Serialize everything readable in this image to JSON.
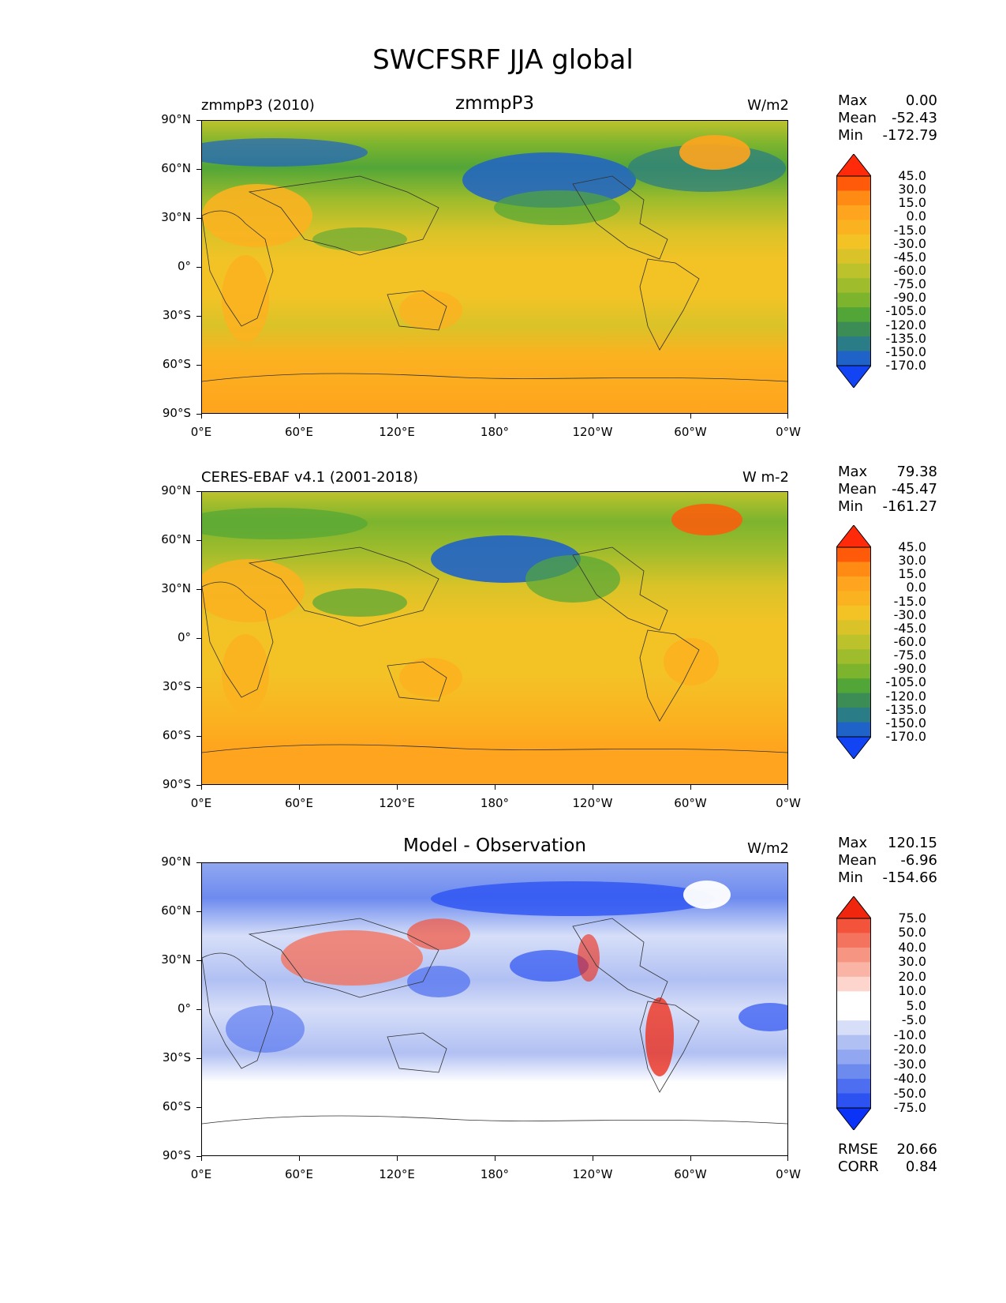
{
  "title": "SWCFSRF JJA global",
  "panels": [
    {
      "left_title": "zmmpP3 (2010)",
      "center_title": "zmmpP3",
      "units": "W/m2",
      "stats": {
        "max_label": "Max",
        "max": "0.00",
        "mean_label": "Mean",
        "mean": "-52.43",
        "min_label": "Min",
        "min": "-172.79"
      },
      "colorbar_levels": [
        "45.0",
        "30.0",
        "15.0",
        "0.0",
        "-15.0",
        "-30.0",
        "-45.0",
        "-60.0",
        "-75.0",
        "-90.0",
        "-105.0",
        "-120.0",
        "-135.0",
        "-150.0",
        "-170.0"
      ]
    },
    {
      "left_title": "CERES-EBAF v4.1 (2001-2018)",
      "center_title": "",
      "units": "W m-2",
      "stats": {
        "max_label": "Max",
        "max": "79.38",
        "mean_label": "Mean",
        "mean": "-45.47",
        "min_label": "Min",
        "min": "-161.27"
      },
      "colorbar_levels": [
        "45.0",
        "30.0",
        "15.0",
        "0.0",
        "-15.0",
        "-30.0",
        "-45.0",
        "-60.0",
        "-75.0",
        "-90.0",
        "-105.0",
        "-120.0",
        "-135.0",
        "-150.0",
        "-170.0"
      ]
    },
    {
      "left_title": "",
      "center_title": "Model - Observation",
      "units": "W/m2",
      "stats": {
        "max_label": "Max",
        "max": "120.15",
        "mean_label": "Mean",
        "mean": "-6.96",
        "min_label": "Min",
        "min": "-154.66"
      },
      "colorbar_levels": [
        "75.0",
        "50.0",
        "40.0",
        "30.0",
        "20.0",
        "10.0",
        "5.0",
        "-5.0",
        "-10.0",
        "-20.0",
        "-30.0",
        "-40.0",
        "-50.0",
        "-75.0"
      ],
      "extra_stats": {
        "rmse_label": "RMSE",
        "rmse": "20.66",
        "corr_label": "CORR",
        "corr": "0.84"
      }
    }
  ],
  "axes": {
    "y_ticks": [
      "90°N",
      "60°N",
      "30°N",
      "0°",
      "30°S",
      "60°S",
      "90°S"
    ],
    "x_ticks": [
      "0°E",
      "60°E",
      "120°E",
      "180°",
      "120°W",
      "60°W",
      "0°W"
    ]
  },
  "colors": {
    "field_scale": [
      "#ff2a0a",
      "#ff5a0a",
      "#ff8a14",
      "#ffa41e",
      "#fbb220",
      "#f3c326",
      "#d9c328",
      "#bcc22c",
      "#9ebc2c",
      "#7cb42e",
      "#52a638",
      "#3c8c56",
      "#2a7c86",
      "#2063c8",
      "#1244f4"
    ],
    "diff_scale": [
      "#f0260f",
      "#f3523b",
      "#f4735f",
      "#f79583",
      "#fab4a6",
      "#fdd5cd",
      "#ffffff",
      "#ffffff",
      "#d6def8",
      "#b1c0f3",
      "#91a7f1",
      "#6d8bef",
      "#4d6ef0",
      "#2c52f2",
      "#0b33f7"
    ]
  },
  "chart_data": [
    {
      "type": "heatmap",
      "title": "zmmpP3",
      "subtitle": "zmmpP3 (2010)",
      "units": "W/m2",
      "xticks": [
        "0°E",
        "60°E",
        "120°E",
        "180°",
        "120°W",
        "60°W",
        "0°W"
      ],
      "yticks": [
        "90°N",
        "60°N",
        "30°N",
        "0°",
        "30°S",
        "60°S",
        "90°S"
      ],
      "xlim": [
        0,
        360
      ],
      "ylim": [
        -90,
        90
      ],
      "levels": [
        -170,
        -150,
        -135,
        -120,
        -105,
        -90,
        -75,
        -60,
        -45,
        -30,
        -15,
        0,
        15,
        30,
        45
      ],
      "stats": {
        "max": 0.0,
        "mean": -52.43,
        "min": -172.79
      }
    },
    {
      "type": "heatmap",
      "subtitle": "CERES-EBAF v4.1 (2001-2018)",
      "units": "W m-2",
      "xticks": [
        "0°E",
        "60°E",
        "120°E",
        "180°",
        "120°W",
        "60°W",
        "0°W"
      ],
      "yticks": [
        "90°N",
        "60°N",
        "30°N",
        "0°",
        "30°S",
        "60°S",
        "90°S"
      ],
      "xlim": [
        0,
        360
      ],
      "ylim": [
        -90,
        90
      ],
      "levels": [
        -170,
        -150,
        -135,
        -120,
        -105,
        -90,
        -75,
        -60,
        -45,
        -30,
        -15,
        0,
        15,
        30,
        45
      ],
      "stats": {
        "max": 79.38,
        "mean": -45.47,
        "min": -161.27
      }
    },
    {
      "type": "heatmap",
      "title": "Model - Observation",
      "units": "W/m2",
      "xticks": [
        "0°E",
        "60°E",
        "120°E",
        "180°",
        "120°W",
        "60°W",
        "0°W"
      ],
      "yticks": [
        "90°N",
        "60°N",
        "30°N",
        "0°",
        "30°S",
        "60°S",
        "90°S"
      ],
      "xlim": [
        0,
        360
      ],
      "ylim": [
        -90,
        90
      ],
      "levels": [
        -75,
        -50,
        -40,
        -30,
        -20,
        -10,
        -5,
        5,
        10,
        20,
        30,
        40,
        50,
        75
      ],
      "stats": {
        "max": 120.15,
        "mean": -6.96,
        "min": -154.66,
        "rmse": 20.66,
        "corr": 0.84
      }
    }
  ]
}
